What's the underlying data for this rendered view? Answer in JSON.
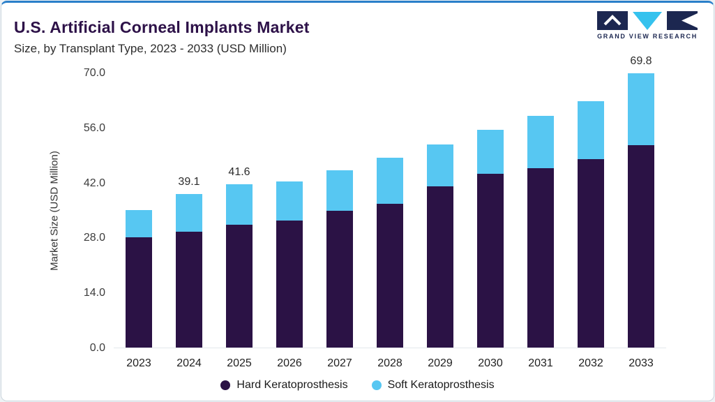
{
  "header": {
    "title": "U.S. Artificial Corneal Implants Market",
    "subtitle": "Size, by Transplant Type, 2023 - 2033 (USD Million)",
    "logo_text": "GRAND VIEW RESEARCH"
  },
  "colors": {
    "hard_series": "#2b1245",
    "soft_series": "#57c7f2",
    "accent_line": "#2a7fc9",
    "title_text": "#2d1148",
    "logo_navy": "#1c2750",
    "logo_cyan": "#35c2ee"
  },
  "chart_data": {
    "type": "bar",
    "stacked": true,
    "title": "U.S. Artificial Corneal Implants Market Size, by Transplant Type, 2023 - 2033 (USD Million)",
    "categories": [
      "2023",
      "2024",
      "2025",
      "2026",
      "2027",
      "2028",
      "2029",
      "2030",
      "2031",
      "2032",
      "2033"
    ],
    "series": [
      {
        "name": "Hard Keratoprosthesis",
        "color": "#2b1245",
        "values": [
          28.1,
          29.5,
          31.3,
          32.4,
          34.9,
          36.6,
          41.0,
          44.3,
          45.6,
          48.0,
          51.5
        ]
      },
      {
        "name": "Soft Keratoprosthesis",
        "color": "#57c7f2",
        "values": [
          6.9,
          9.6,
          10.3,
          9.9,
          10.2,
          11.7,
          10.7,
          11.2,
          13.4,
          14.8,
          18.3
        ]
      }
    ],
    "totals": [
      35.0,
      39.1,
      41.6,
      42.3,
      45.1,
      48.3,
      51.7,
      55.5,
      59.0,
      62.8,
      69.8
    ],
    "value_labels": [
      "",
      "39.1",
      "41.6",
      "",
      "",
      "",
      "",
      "",
      "",
      "",
      "69.8"
    ],
    "ylabel": "Market Size (USD Million)",
    "yticks": [
      0,
      14,
      28,
      42,
      56,
      70
    ],
    "ytick_labels": [
      "0.0",
      "14.0",
      "28.0",
      "42.0",
      "56.0",
      "70.0"
    ],
    "ylim": [
      0,
      70
    ],
    "grid": false,
    "legend_position": "bottom"
  }
}
